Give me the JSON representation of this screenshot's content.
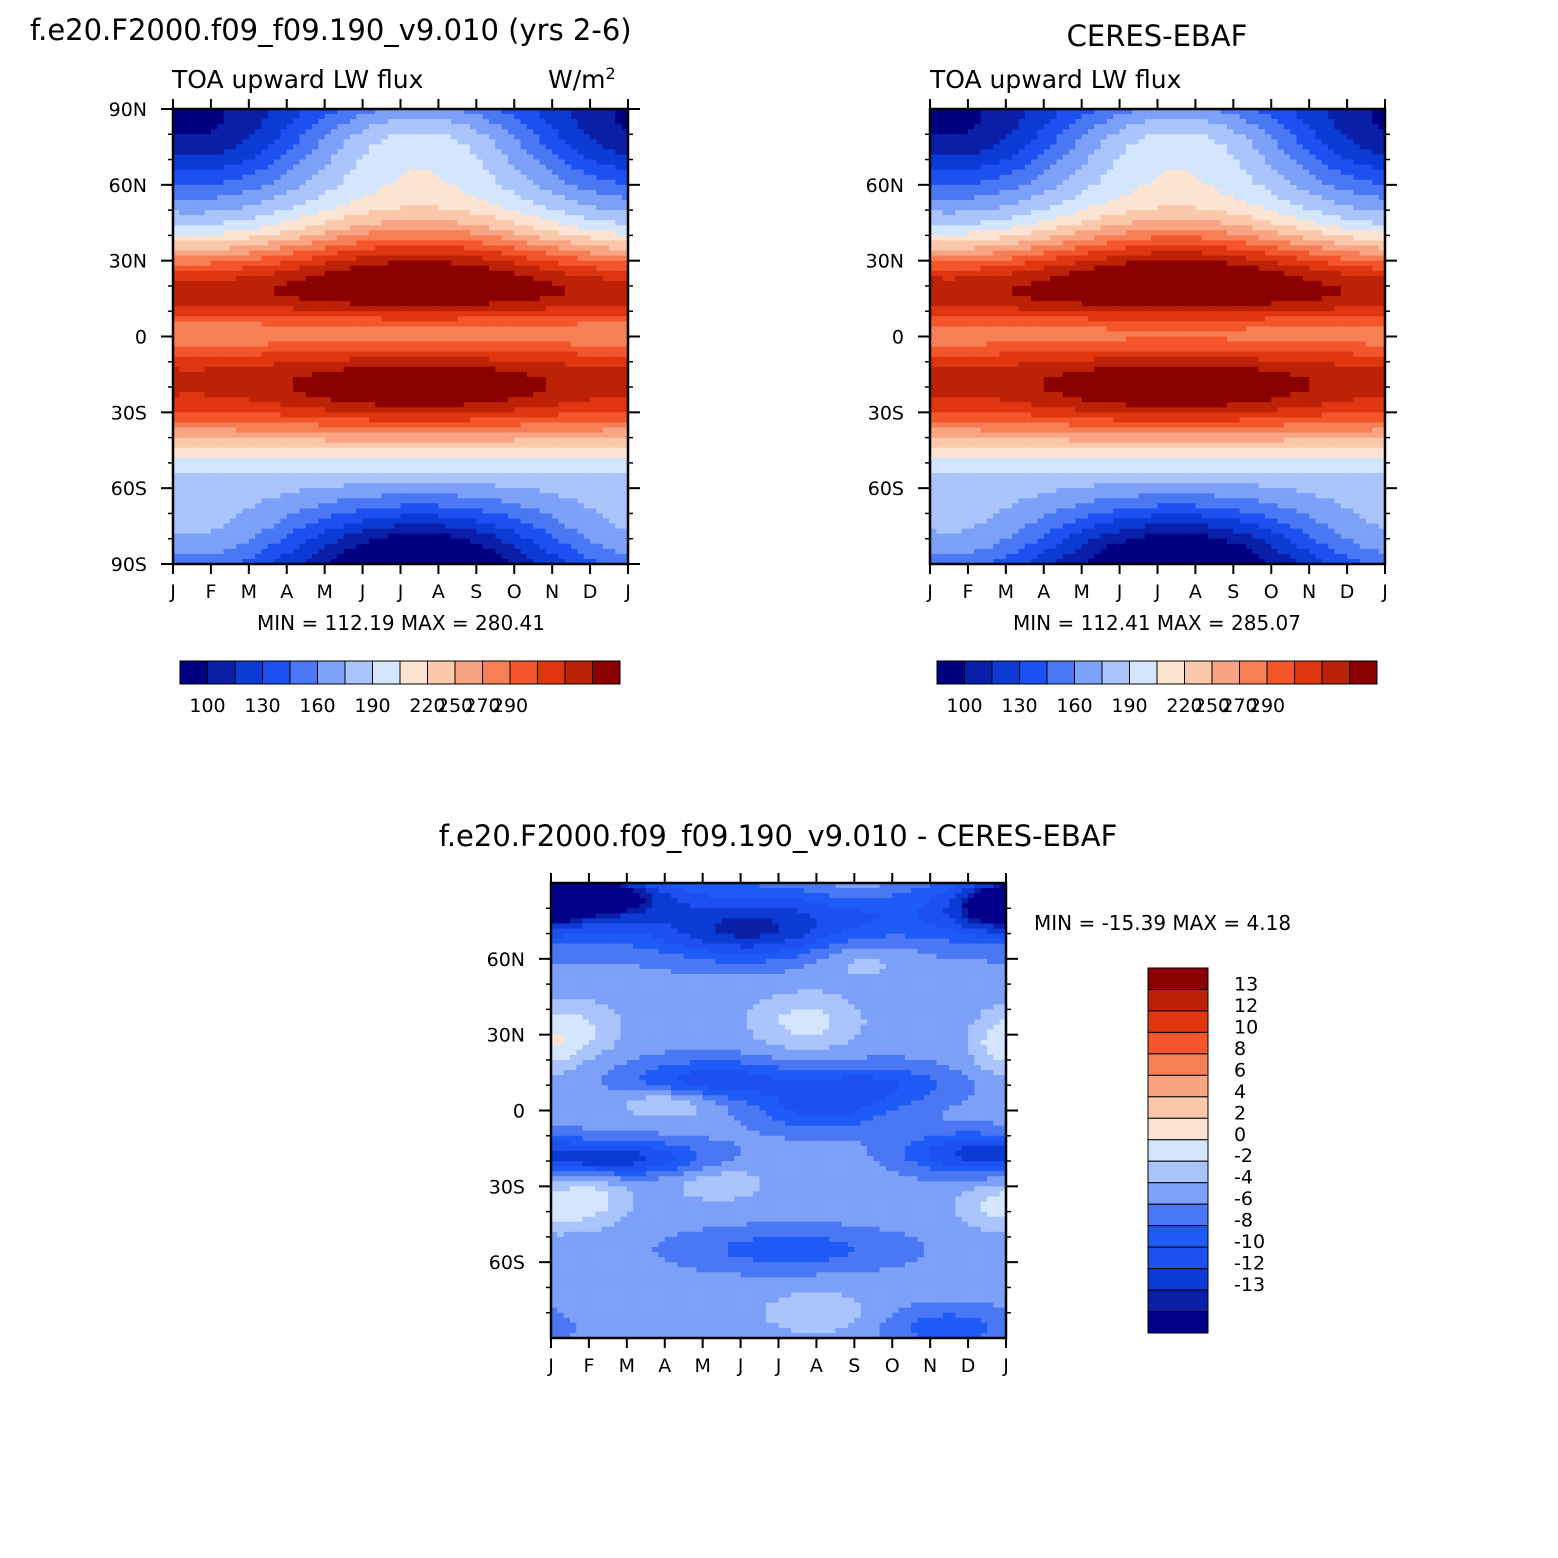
{
  "chart_data": [
    {
      "type": "heatmap",
      "id": "model",
      "title": "f.e20.F2000.f09_f09.190_v9.010 (yrs 2-6)",
      "left_label": "TOA upward LW flux",
      "units": "W/m",
      "units_sup": "2",
      "x_labels": [
        "J",
        "F",
        "M",
        "A",
        "M",
        "J",
        "J",
        "A",
        "S",
        "O",
        "N",
        "D",
        "J"
      ],
      "y_labels": [
        "90S",
        "60S",
        "30S",
        "0",
        "30N",
        "60N",
        "90N"
      ],
      "y_ticks": [
        -90,
        -60,
        -30,
        0,
        30,
        60,
        90
      ],
      "xlim": [
        0,
        12
      ],
      "ylim": [
        -90,
        90
      ],
      "stats_text": "MIN = 112.19 MAX = 280.41",
      "min": 112.19,
      "max": 280.41,
      "levels": [
        100,
        110,
        120,
        130,
        140,
        150,
        160,
        170,
        180,
        190,
        200,
        210,
        220,
        230,
        240,
        250,
        260,
        270,
        280,
        290
      ],
      "levels_shown": [
        "100",
        "130",
        "160",
        "190",
        "220",
        "250",
        "270",
        "290"
      ],
      "colors": [
        "#000080",
        "#0a1fa8",
        "#0c3ad4",
        "#1c50f0",
        "#4a78f5",
        "#7da0f8",
        "#aac5fb",
        "#d4e6fd",
        "#fde4d2",
        "#fcc8ac",
        "#f9a482",
        "#f77f55",
        "#f4552a",
        "#e03610",
        "#be2206",
        "#8b0000"
      ],
      "peak_nh": 262,
      "peak_sh": 275,
      "pole_n": 150,
      "pole_s": 118
    },
    {
      "type": "heatmap",
      "id": "obs",
      "title": "CERES-EBAF",
      "left_label": "TOA upward LW flux",
      "x_labels": [
        "J",
        "F",
        "M",
        "A",
        "M",
        "J",
        "J",
        "A",
        "S",
        "O",
        "N",
        "D",
        "J"
      ],
      "y_labels": [
        "60S",
        "30S",
        "0",
        "30N",
        "60N"
      ],
      "y_ticks": [
        -60,
        -30,
        0,
        30,
        60
      ],
      "xlim": [
        0,
        12
      ],
      "ylim": [
        -90,
        90
      ],
      "stats_text": "MIN = 112.41 MAX = 285.07",
      "min": 112.41,
      "max": 285.07,
      "levels": [
        100,
        110,
        120,
        130,
        140,
        150,
        160,
        170,
        180,
        190,
        200,
        210,
        220,
        230,
        240,
        250,
        260,
        270,
        280,
        290
      ],
      "levels_shown": [
        "100",
        "130",
        "160",
        "190",
        "220",
        "250",
        "270",
        "290"
      ],
      "colors": [
        "#000080",
        "#0a1fa8",
        "#0c3ad4",
        "#1c50f0",
        "#4a78f5",
        "#7da0f8",
        "#aac5fb",
        "#d4e6fd",
        "#fde4d2",
        "#fcc8ac",
        "#f9a482",
        "#f77f55",
        "#f4552a",
        "#e03610",
        "#be2206",
        "#8b0000"
      ],
      "peak_nh": 272,
      "peak_sh": 278,
      "pole_n": 158,
      "pole_s": 116
    },
    {
      "type": "heatmap",
      "id": "diff",
      "title": "f.e20.F2000.f09_f09.190_v9.010 - CERES-EBAF",
      "x_labels": [
        "J",
        "F",
        "M",
        "A",
        "M",
        "J",
        "J",
        "A",
        "S",
        "O",
        "N",
        "D",
        "J"
      ],
      "y_labels": [
        "60S",
        "30S",
        "0",
        "30N",
        "60N"
      ],
      "y_ticks": [
        -60,
        -30,
        0,
        30,
        60
      ],
      "xlim": [
        0,
        12
      ],
      "ylim": [
        -90,
        90
      ],
      "stats_text": "MIN = -15.39 MAX = 4.18",
      "min": -15.39,
      "max": 4.18,
      "levels": [
        -13,
        -12,
        -10,
        -8,
        -6,
        -4,
        -2,
        0,
        2,
        4,
        6,
        8,
        10,
        12,
        13
      ],
      "levels_shown": [
        "13",
        "12",
        "10",
        "8",
        "6",
        "4",
        "2",
        "0",
        "-2",
        "-4",
        "-6",
        "-8",
        "-10",
        "-12",
        "-13"
      ],
      "colors": [
        "#00008b",
        "#0a1fa8",
        "#0c3ad4",
        "#1c50f0",
        "#1e5af5",
        "#4a78f5",
        "#7da0f8",
        "#aac5fb",
        "#d4e6fd",
        "#fde4d2",
        "#fcc8ac",
        "#f9a482",
        "#f77f55",
        "#f4552a",
        "#e03610",
        "#be2206",
        "#8b0000"
      ]
    }
  ]
}
